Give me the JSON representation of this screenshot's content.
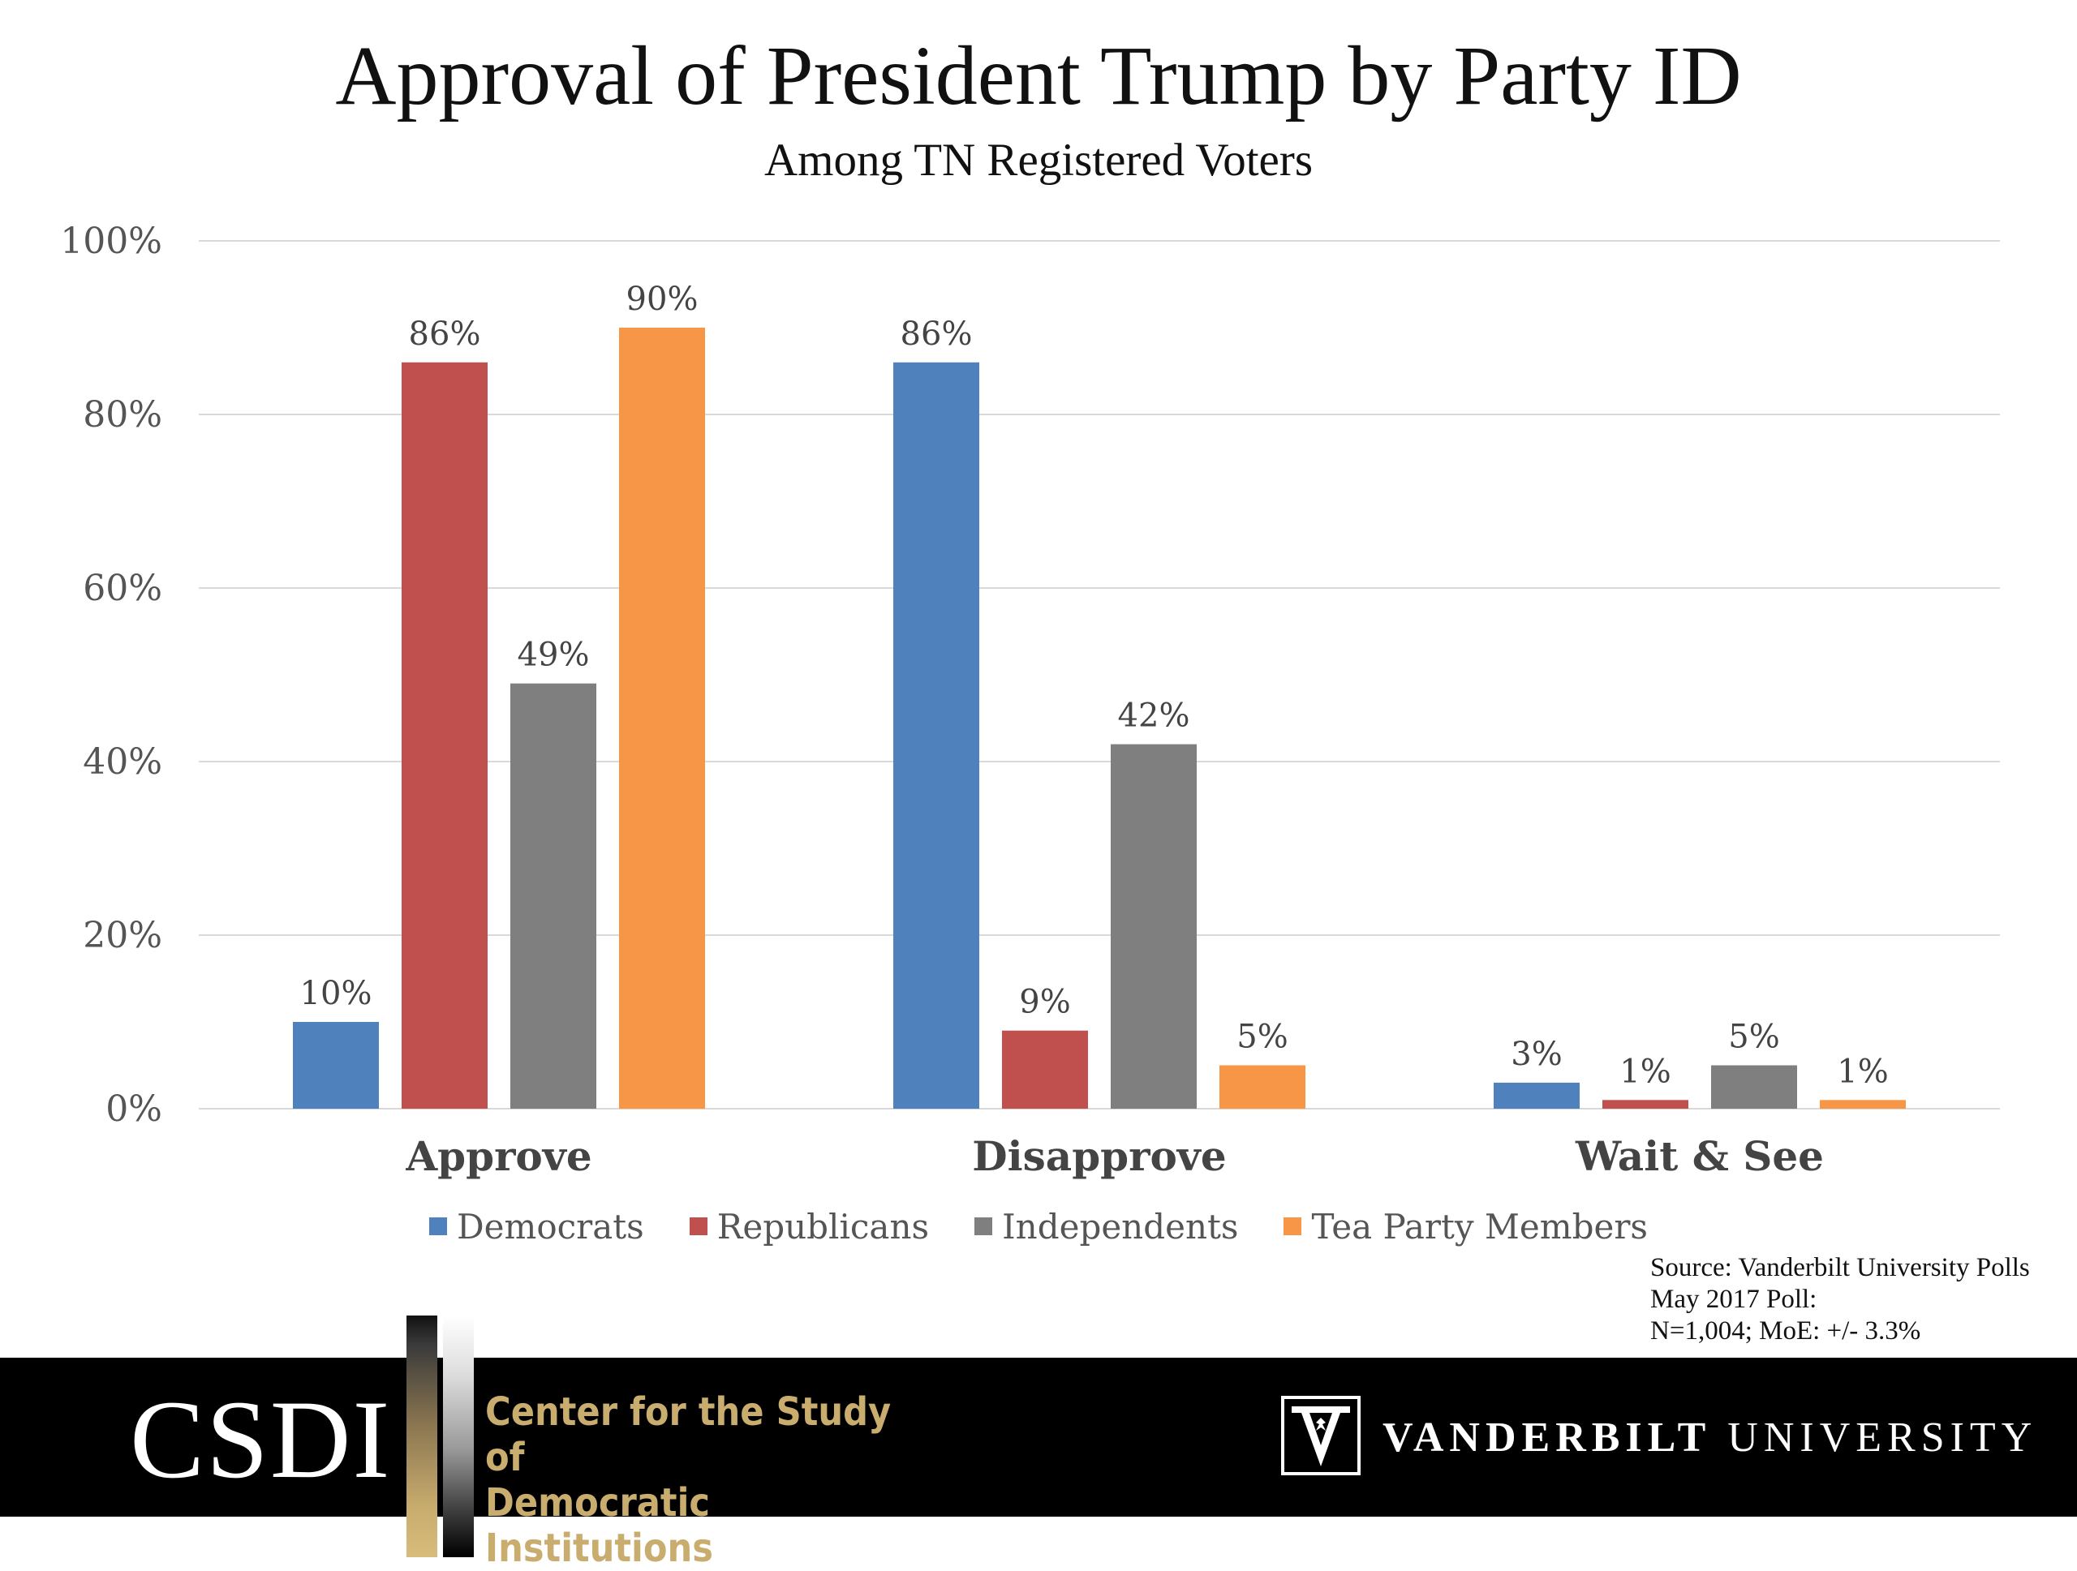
{
  "chart_data": {
    "type": "bar",
    "title": "Approval of President Trump by Party ID",
    "subtitle": "Among TN Registered Voters",
    "categories": [
      "Approve",
      "Disapprove",
      "Wait & See"
    ],
    "series": [
      {
        "name": "Democrats",
        "color": "#4f81bd",
        "values": [
          10,
          86,
          3
        ],
        "labels": [
          "10%",
          "86%",
          "3%"
        ]
      },
      {
        "name": "Republicans",
        "color": "#c0504d",
        "values": [
          86,
          9,
          1
        ],
        "labels": [
          "86%",
          "9%",
          "1%"
        ]
      },
      {
        "name": "Independents",
        "color": "#7f7f7f",
        "values": [
          49,
          42,
          5
        ],
        "labels": [
          "49%",
          "42%",
          "5%"
        ]
      },
      {
        "name": "Tea Party Members",
        "color": "#f79646",
        "values": [
          90,
          5,
          1
        ],
        "labels": [
          "90%",
          "5%",
          "1%"
        ]
      }
    ],
    "ylim": [
      0,
      100
    ],
    "yticks": [
      0,
      20,
      40,
      60,
      80,
      100
    ],
    "ytick_labels": [
      "0%",
      "20%",
      "40%",
      "60%",
      "80%",
      "100%"
    ],
    "xlabel": "",
    "ylabel": "",
    "grid": true,
    "legend_position": "bottom"
  },
  "source": {
    "line1": "Source: Vanderbilt University Polls",
    "line2": "May 2017 Poll:",
    "line3": "N=1,004; MoE: +/- 3.3%"
  },
  "footer": {
    "csdi_logo": "CSDI",
    "csdi_name_line1": "Center for the Study of",
    "csdi_name_line2": "Democratic Institutions",
    "vanderbilt_bold": "VANDERBILT",
    "vanderbilt_light": "UNIVERSITY",
    "gold": "#c9ad6e"
  }
}
